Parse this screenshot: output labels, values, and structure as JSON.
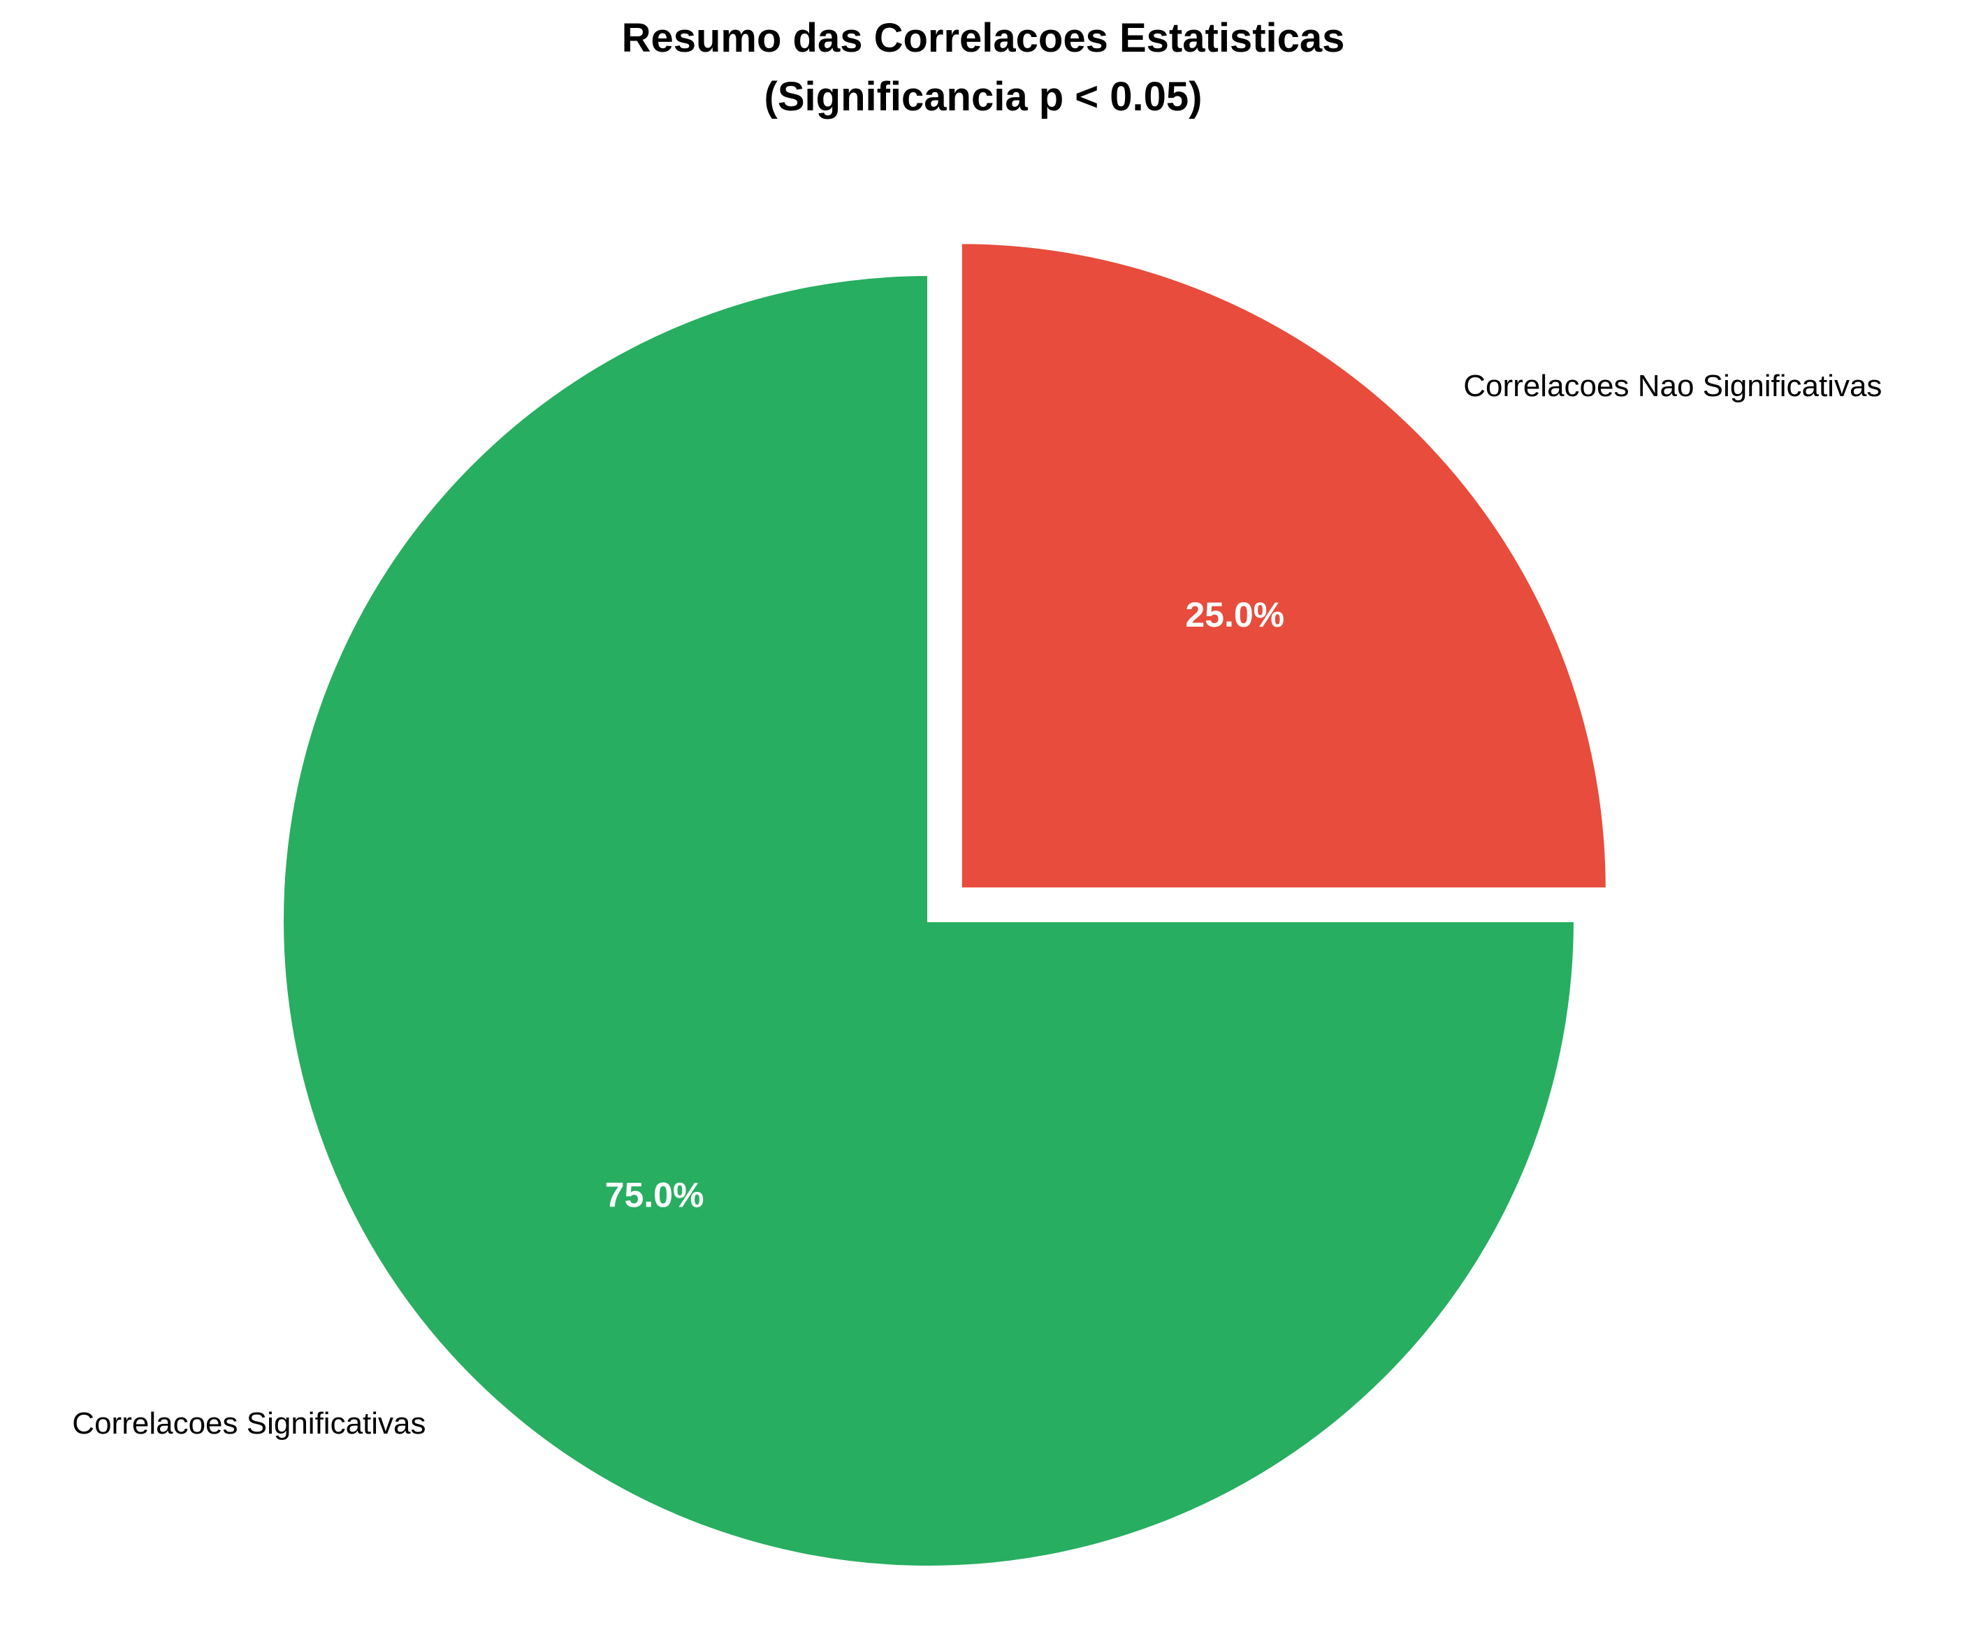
{
  "chart_data": {
    "type": "pie",
    "title": "Resumo das Correlacoes Estatisticas",
    "subtitle": "(Significancia p < 0.05)",
    "start_angle_deg": 90,
    "direction": "counterclockwise",
    "slices": [
      {
        "label": "Correlacoes Significativas",
        "value": 75.0,
        "pct_label": "75.0%",
        "color": "#27ae60",
        "exploded": false
      },
      {
        "label": "Correlacoes Nao Significativas",
        "value": 25.0,
        "pct_label": "25.0%",
        "color": "#e74c3c",
        "exploded": true
      }
    ]
  }
}
